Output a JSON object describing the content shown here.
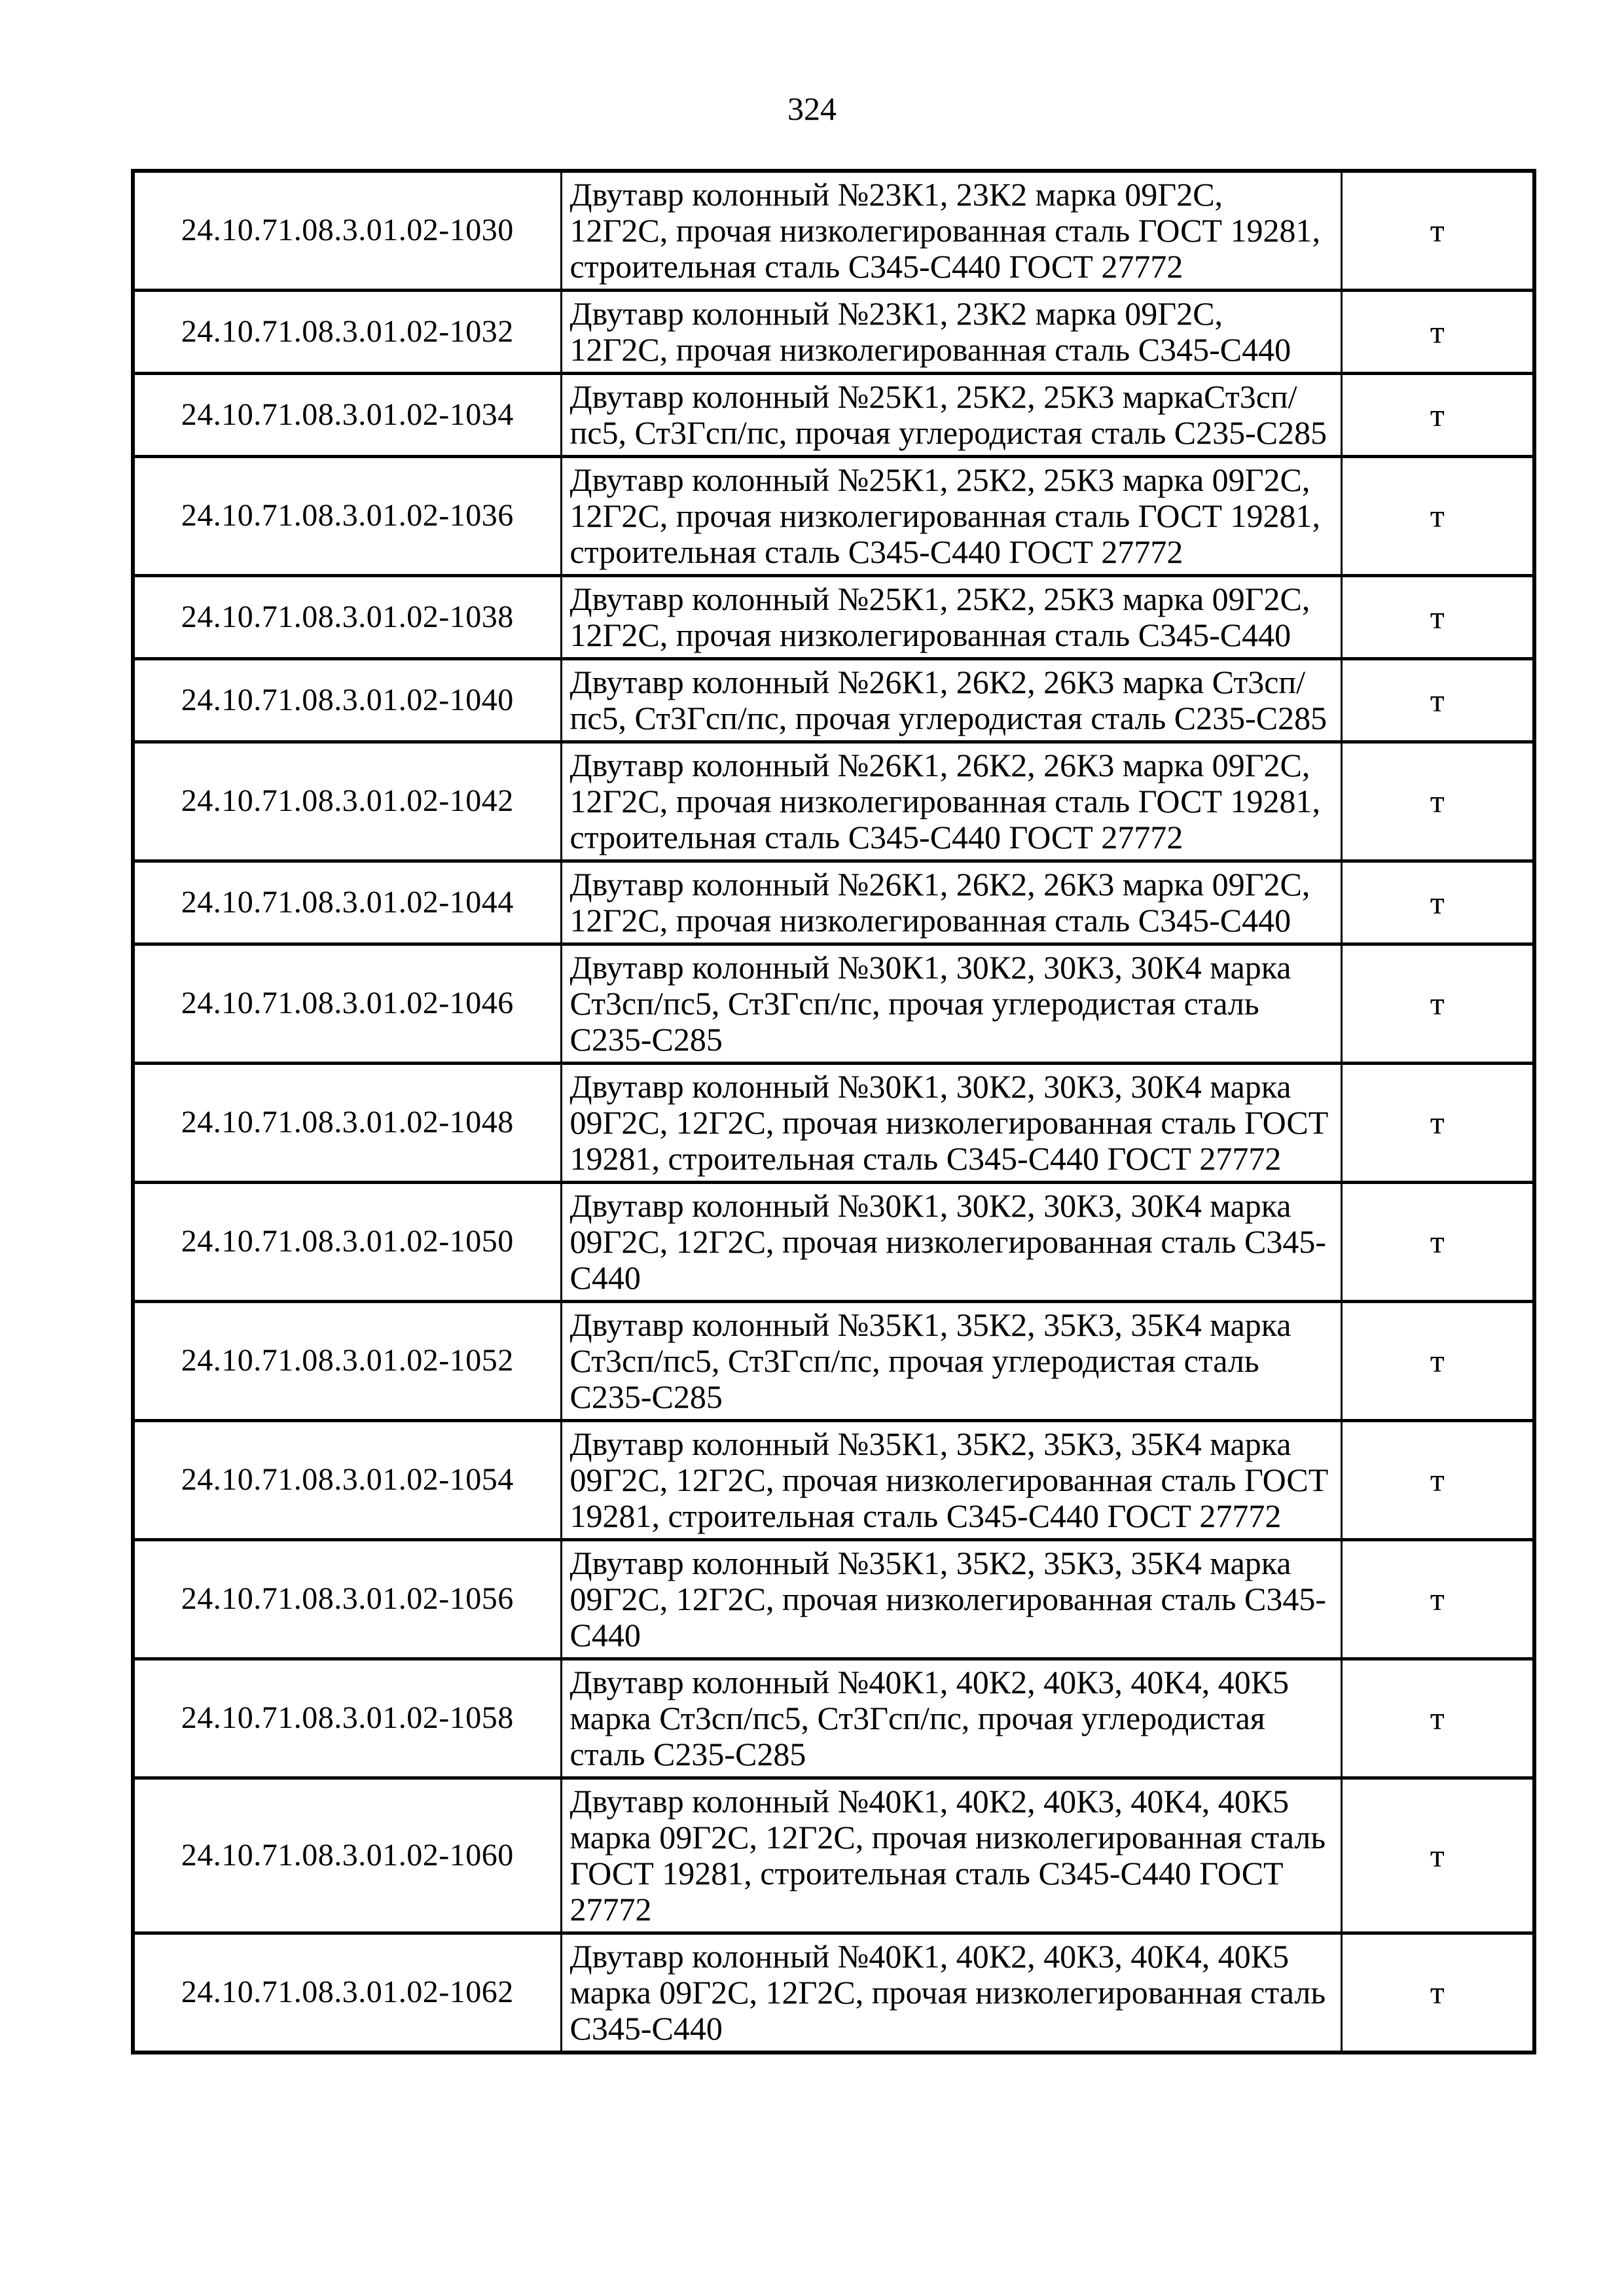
{
  "page_number": "324",
  "table": {
    "rows": [
      {
        "code": "24.10.71.08.3.01.02-1030",
        "description": "Двутавр колонный №23К1, 23К2 марка 09Г2С, 12Г2С, прочая низколегированная сталь ГОСТ 19281, строительная сталь С345-С440 ГОСТ 27772",
        "unit": "т"
      },
      {
        "code": "24.10.71.08.3.01.02-1032",
        "description": "Двутавр колонный №23К1, 23К2 марка 09Г2С, 12Г2С, прочая низколегированная сталь С345-С440",
        "unit": "т"
      },
      {
        "code": "24.10.71.08.3.01.02-1034",
        "description": "Двутавр колонный №25К1, 25К2, 25К3 маркаСт3сп/пс5, Ст3Гсп/пс, прочая углеродистая сталь С235-С285",
        "unit": "т"
      },
      {
        "code": "24.10.71.08.3.01.02-1036",
        "description": "Двутавр колонный №25К1, 25К2, 25К3 марка 09Г2С, 12Г2С, прочая низколегированная сталь ГОСТ 19281, строительная сталь С345-С440 ГОСТ 27772",
        "unit": "т"
      },
      {
        "code": "24.10.71.08.3.01.02-1038",
        "description": "Двутавр колонный №25К1, 25К2, 25К3 марка 09Г2С, 12Г2С, прочая низколегированная сталь С345-С440",
        "unit": "т"
      },
      {
        "code": "24.10.71.08.3.01.02-1040",
        "description": "Двутавр колонный №26К1, 26К2, 26К3 марка Ст3сп/пс5, Ст3Гсп/пс, прочая углеродистая сталь С235-С285",
        "unit": "т"
      },
      {
        "code": "24.10.71.08.3.01.02-1042",
        "description": "Двутавр колонный №26К1, 26К2, 26К3 марка 09Г2С, 12Г2С, прочая низколегированная сталь ГОСТ 19281, строительная сталь С345-С440 ГОСТ 27772",
        "unit": "т"
      },
      {
        "code": "24.10.71.08.3.01.02-1044",
        "description": "Двутавр колонный №26К1, 26К2, 26К3 марка 09Г2С, 12Г2С, прочая низколегированная сталь С345-С440",
        "unit": "т"
      },
      {
        "code": "24.10.71.08.3.01.02-1046",
        "description": "Двутавр колонный №30К1, 30К2, 30К3, 30К4 марка Ст3сп/пс5, Ст3Гсп/пс, прочая углеродистая сталь С235-С285",
        "unit": "т"
      },
      {
        "code": "24.10.71.08.3.01.02-1048",
        "description": "Двутавр колонный №30К1, 30К2, 30К3, 30К4 марка 09Г2С, 12Г2С, прочая низколегированная сталь ГОСТ 19281, строительная сталь С345-С440 ГОСТ 27772",
        "unit": "т"
      },
      {
        "code": "24.10.71.08.3.01.02-1050",
        "description": "Двутавр колонный №30К1, 30К2, 30К3, 30К4 марка 09Г2С, 12Г2С, прочая низколегированная сталь С345-С440",
        "unit": "т"
      },
      {
        "code": "24.10.71.08.3.01.02-1052",
        "description": "Двутавр колонный №35К1, 35К2, 35К3, 35К4 марка Ст3сп/пс5, Ст3Гсп/пс, прочая углеродистая сталь С235-С285",
        "unit": "т"
      },
      {
        "code": "24.10.71.08.3.01.02-1054",
        "description": "Двутавр колонный №35К1, 35К2, 35К3, 35К4 марка 09Г2С, 12Г2С, прочая низколегированная сталь ГОСТ 19281, строительная сталь С345-С440 ГОСТ 27772",
        "unit": "т"
      },
      {
        "code": "24.10.71.08.3.01.02-1056",
        "description": "Двутавр колонный №35К1, 35К2, 35К3, 35К4 марка 09Г2С, 12Г2С, прочая низколегированная сталь С345-С440",
        "unit": "т"
      },
      {
        "code": "24.10.71.08.3.01.02-1058",
        "description": "Двутавр колонный №40К1, 40К2, 40К3, 40К4, 40К5 марка Ст3сп/пс5, Ст3Гсп/пс, прочая углеродистая сталь С235-С285",
        "unit": "т"
      },
      {
        "code": "24.10.71.08.3.01.02-1060",
        "description": "Двутавр колонный №40К1, 40К2, 40К3, 40К4, 40К5 марка 09Г2С, 12Г2С, прочая низколегированная сталь ГОСТ 19281, строительная сталь С345-С440 ГОСТ 27772",
        "unit": "т"
      },
      {
        "code": "24.10.71.08.3.01.02-1062",
        "description": "Двутавр колонный №40К1, 40К2, 40К3, 40К4, 40К5 марка 09Г2С, 12Г2С, прочая низколегированная сталь С345-С440",
        "unit": "т"
      }
    ]
  }
}
